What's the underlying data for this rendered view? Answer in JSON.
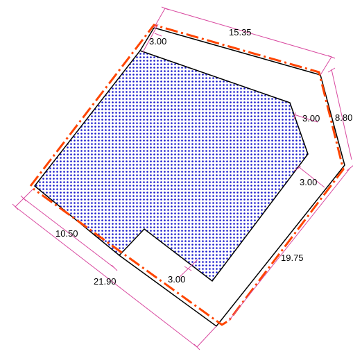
{
  "colors": {
    "background": "#ffffff",
    "lot_line": "#000000",
    "buildable_fill": "#1a1acc",
    "setback_line": "#ff4500",
    "dimension_line": "#d94aa0"
  },
  "dimensions": {
    "top_edge": "15.35",
    "right_edge": "8.80",
    "lower_right_edge": "19.75",
    "left_edge": "21.90",
    "notch_edge": "10.50",
    "setback_top": "3.00",
    "setback_right_upper": "3.00",
    "setback_right_lower": "3.00",
    "setback_bottom": "3.00"
  }
}
